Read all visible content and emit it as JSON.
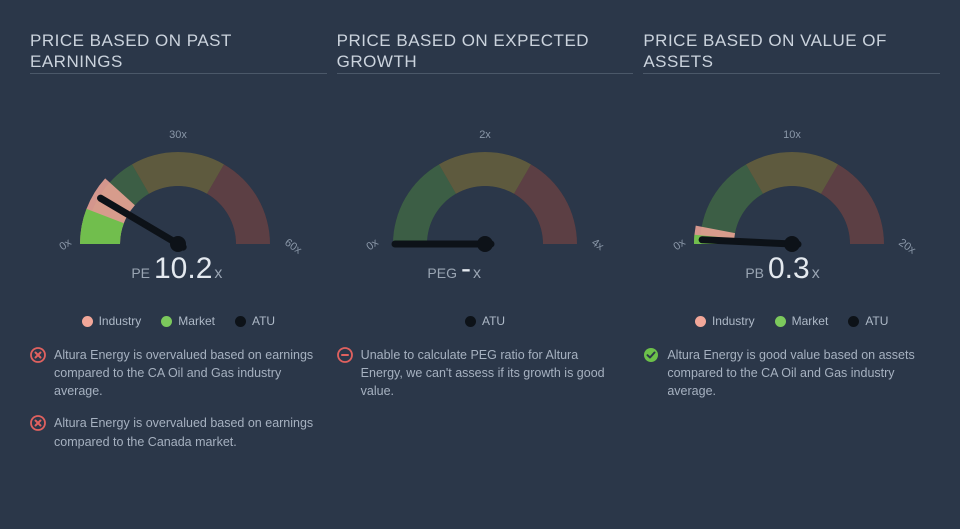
{
  "background_color": "#2b3749",
  "text_color": "#aeb9c7",
  "title_color": "#cbd3dd",
  "divider_color": "#4b5869",
  "gauge": {
    "arc_colors": {
      "good": "#72c05b",
      "mid": "#d4b549",
      "bad": "#cf6658"
    },
    "needle_color": "#0d1218",
    "market_wedge_color": "#6cc04a",
    "industry_wedge_color": "#f2a799"
  },
  "legend_colors": {
    "industry": "#f2a799",
    "market": "#7cc95c",
    "atu": "#0d1218"
  },
  "status_colors": {
    "bad": "#e0615f",
    "warn": "#e0615f",
    "good": "#6cc04a"
  },
  "panels": [
    {
      "title": "PRICE BASED ON PAST EARNINGS",
      "metric_label": "PE",
      "metric_value": "10.2",
      "metric_suffix": "x",
      "ticks": [
        "0x",
        "30x",
        "60x"
      ],
      "scale_max": 60,
      "needle_value": 10.2,
      "show_industry_wedge": true,
      "industry_wedge_start": 0,
      "industry_wedge_end": 14,
      "show_market_wedge": true,
      "market_wedge_start": 0,
      "market_wedge_end": 7,
      "legend": [
        "Industry",
        "Market",
        "ATU"
      ],
      "notes": [
        {
          "kind": "bad",
          "text": "Altura Energy is overvalued based on earnings compared to the CA Oil and Gas industry average."
        },
        {
          "kind": "bad",
          "text": "Altura Energy is overvalued based on earnings compared to the Canada market."
        }
      ]
    },
    {
      "title": "PRICE BASED ON EXPECTED GROWTH",
      "metric_label": "PEG",
      "metric_value": "-",
      "metric_suffix": "x",
      "ticks": [
        "0x",
        "2x",
        "4x"
      ],
      "scale_max": 4,
      "needle_value": 0,
      "show_industry_wedge": false,
      "show_market_wedge": false,
      "legend": [
        "ATU"
      ],
      "notes": [
        {
          "kind": "warn",
          "text": "Unable to calculate PEG ratio for Altura Energy, we can't assess if its growth is good value."
        }
      ]
    },
    {
      "title": "PRICE BASED ON VALUE OF ASSETS",
      "metric_label": "PB",
      "metric_value": "0.3",
      "metric_suffix": "x",
      "ticks": [
        "0x",
        "10x",
        "20x"
      ],
      "scale_max": 20,
      "needle_value": 0.3,
      "show_industry_wedge": true,
      "industry_wedge_start": 0,
      "industry_wedge_end": 1.2,
      "show_market_wedge": true,
      "market_wedge_start": 0,
      "market_wedge_end": 0.6,
      "legend": [
        "Industry",
        "Market",
        "ATU"
      ],
      "notes": [
        {
          "kind": "good",
          "text": "Altura Energy is good value based on assets compared to the CA Oil and Gas industry average."
        }
      ]
    }
  ]
}
